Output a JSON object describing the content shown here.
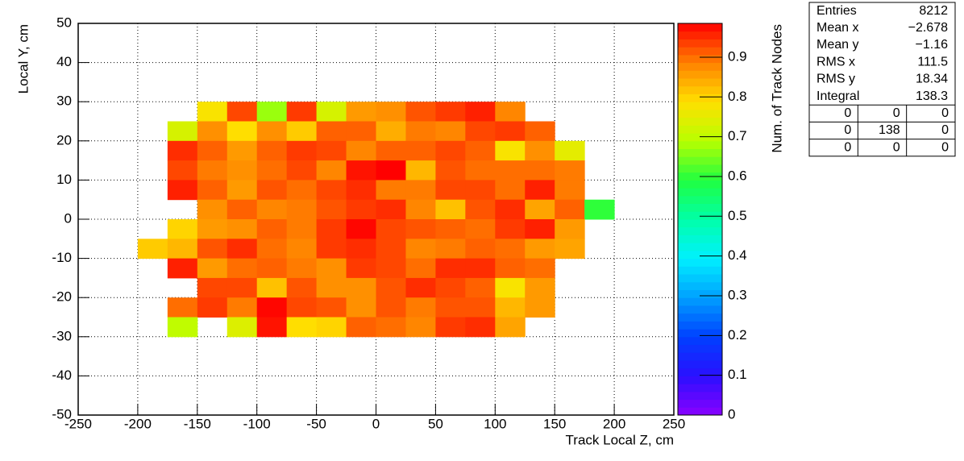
{
  "chart_data": {
    "type": "heatmap",
    "xlabel": "Track Local Z, cm",
    "ylabel": "Local Y, cm",
    "zlabel": "Num. of Track Nodes",
    "x_bins": [
      -200,
      -175,
      -150,
      -125,
      -100,
      -75,
      -50,
      -25,
      0,
      25,
      50,
      75,
      100,
      125,
      150,
      175,
      200
    ],
    "y_bins": [
      30,
      25,
      20,
      15,
      10,
      5,
      0,
      -5,
      -10,
      -15,
      -20,
      -25,
      -30
    ],
    "z": [
      [
        null,
        null,
        0.78,
        0.93,
        0.67,
        0.94,
        0.73,
        0.86,
        0.87,
        0.92,
        0.94,
        0.96,
        0.88,
        null,
        null,
        null
      ],
      [
        null,
        0.73,
        0.87,
        0.79,
        0.87,
        0.81,
        0.91,
        0.91,
        0.84,
        0.89,
        0.88,
        0.93,
        0.94,
        0.91,
        null,
        null
      ],
      [
        null,
        0.95,
        0.91,
        0.86,
        0.91,
        0.94,
        0.93,
        0.88,
        0.91,
        0.91,
        0.93,
        0.91,
        0.78,
        0.87,
        0.75,
        null
      ],
      [
        null,
        0.93,
        0.89,
        0.87,
        0.9,
        0.93,
        0.88,
        0.97,
        0.99,
        0.83,
        0.92,
        0.9,
        0.9,
        0.9,
        0.89,
        null
      ],
      [
        null,
        0.96,
        0.91,
        0.86,
        0.92,
        0.9,
        0.93,
        0.95,
        0.89,
        0.89,
        0.93,
        0.93,
        0.9,
        0.96,
        0.89,
        null
      ],
      [
        null,
        null,
        0.87,
        0.91,
        0.88,
        0.89,
        0.92,
        0.94,
        0.95,
        0.88,
        0.82,
        0.92,
        0.95,
        0.85,
        0.91,
        0.6
      ],
      [
        null,
        0.8,
        0.86,
        0.87,
        0.91,
        0.89,
        0.94,
        0.98,
        0.93,
        0.92,
        0.91,
        0.9,
        0.94,
        0.96,
        0.86,
        null
      ],
      [
        0.81,
        0.83,
        0.92,
        0.95,
        0.9,
        0.88,
        0.94,
        0.95,
        0.93,
        0.88,
        0.89,
        0.91,
        0.9,
        0.86,
        0.85,
        null
      ],
      [
        null,
        0.96,
        0.86,
        0.9,
        0.91,
        0.89,
        0.87,
        0.94,
        0.93,
        0.9,
        0.95,
        0.95,
        0.91,
        0.9,
        null,
        null
      ],
      [
        null,
        null,
        0.93,
        0.93,
        0.82,
        0.92,
        0.87,
        0.87,
        0.92,
        0.95,
        0.93,
        0.91,
        0.78,
        0.86,
        null,
        null
      ],
      [
        null,
        0.9,
        0.94,
        0.89,
        0.98,
        0.93,
        0.92,
        0.87,
        0.92,
        0.89,
        0.92,
        0.92,
        0.83,
        0.86,
        null,
        null
      ],
      [
        null,
        0.7,
        null,
        0.74,
        0.97,
        0.79,
        0.8,
        0.91,
        0.9,
        0.88,
        0.94,
        0.95,
        0.85,
        null,
        null,
        null
      ]
    ],
    "xlim": [
      -250,
      250
    ],
    "xticks": [
      -250,
      -200,
      -150,
      -100,
      -50,
      0,
      50,
      100,
      150,
      200,
      250
    ],
    "ylim": [
      -50,
      50
    ],
    "yticks": [
      -50,
      -40,
      -30,
      -20,
      -10,
      0,
      10,
      20,
      30,
      40,
      50
    ],
    "zlim": [
      0,
      0.985
    ],
    "zticks": [
      0,
      0.1,
      0.2,
      0.3,
      0.4,
      0.5,
      0.6,
      0.7,
      0.8,
      0.9
    ],
    "grid": true,
    "colorscale": [
      [
        0,
        "#8a00ff"
      ],
      [
        0.1,
        "#2a10ff"
      ],
      [
        0.2,
        "#0040ff"
      ],
      [
        0.3,
        "#00a0ff"
      ],
      [
        0.4,
        "#00f0ff"
      ],
      [
        0.5,
        "#00ffa8"
      ],
      [
        0.6,
        "#20ff40"
      ],
      [
        0.7,
        "#b8ff00"
      ],
      [
        0.8,
        "#ffe000"
      ],
      [
        0.9,
        "#ff8000"
      ],
      [
        1.0,
        "#ff0000"
      ]
    ]
  },
  "stats_box": {
    "rows": [
      [
        "Entries",
        "8212"
      ],
      [
        "Mean x",
        "−2.678"
      ],
      [
        "Mean y",
        "−1.16"
      ],
      [
        "RMS x",
        "111.5"
      ],
      [
        "RMS y",
        "18.34"
      ],
      [
        "Integral",
        "138.3"
      ]
    ],
    "grid": [
      [
        "0",
        "0",
        "0"
      ],
      [
        "0",
        "138",
        "0"
      ],
      [
        "0",
        "0",
        "0"
      ]
    ]
  }
}
